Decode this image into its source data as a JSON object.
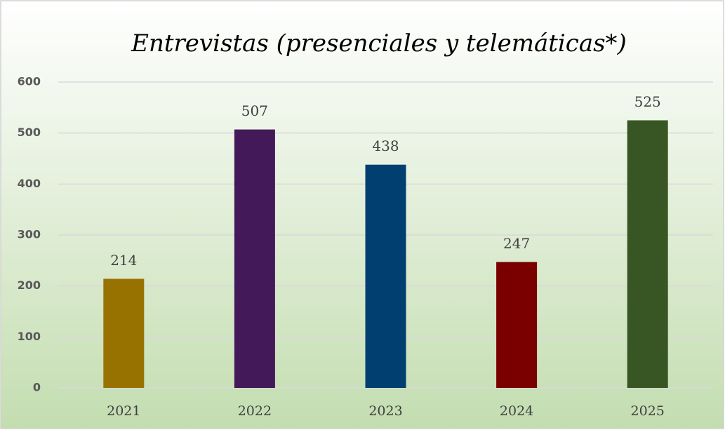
{
  "chart_data": {
    "type": "bar",
    "title": "Entrevistas (presenciales y telemáticas*)",
    "categories": [
      "2021",
      "2022",
      "2023",
      "2024",
      "2025"
    ],
    "values": [
      214,
      507,
      438,
      247,
      525
    ],
    "colors": [
      "#987200",
      "#44195a",
      "#003f70",
      "#7a0000",
      "#375623"
    ],
    "ylim": [
      0,
      600
    ],
    "yticks": [
      0,
      100,
      200,
      300,
      400,
      500,
      600
    ],
    "grid": true,
    "data_labels": true
  }
}
